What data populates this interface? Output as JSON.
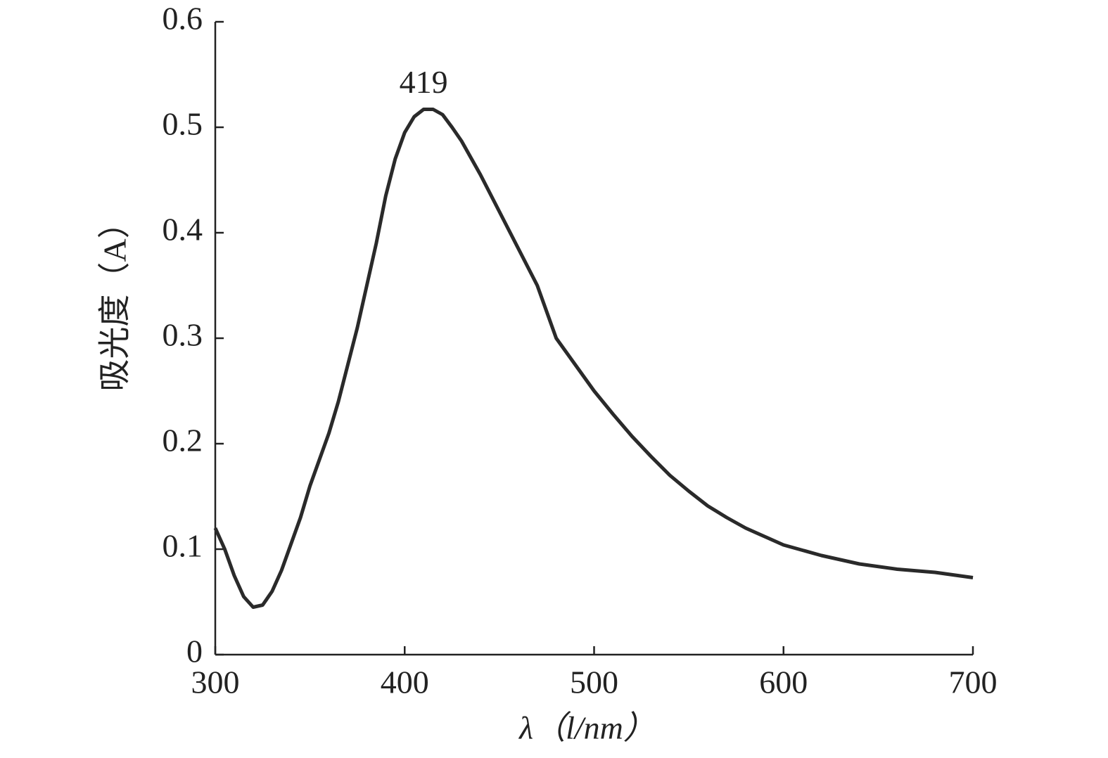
{
  "chart_data": {
    "type": "line",
    "x_label": "λ（l/nm）",
    "y_label": "吸光度（A）",
    "annotation": "419",
    "x": [
      300,
      305,
      310,
      315,
      320,
      325,
      330,
      335,
      340,
      345,
      350,
      355,
      360,
      365,
      370,
      375,
      380,
      385,
      390,
      395,
      400,
      405,
      410,
      415,
      420,
      425,
      430,
      440,
      450,
      460,
      470,
      480,
      490,
      500,
      510,
      520,
      530,
      540,
      550,
      560,
      570,
      580,
      590,
      600,
      620,
      640,
      660,
      680,
      700
    ],
    "series": [
      {
        "color": "#2a2a2a",
        "values": [
          0.12,
          0.1,
          0.075,
          0.055,
          0.045,
          0.047,
          0.06,
          0.08,
          0.105,
          0.13,
          0.16,
          0.185,
          0.21,
          0.24,
          0.275,
          0.31,
          0.35,
          0.39,
          0.435,
          0.47,
          0.495,
          0.51,
          0.517,
          0.517,
          0.512,
          0.5,
          0.487,
          0.455,
          0.42,
          0.385,
          0.35,
          0.3,
          0.275,
          0.25,
          0.228,
          0.207,
          0.188,
          0.17,
          0.155,
          0.141,
          0.13,
          0.12,
          0.112,
          0.104,
          0.094,
          0.086,
          0.081,
          0.078,
          0.073
        ]
      }
    ],
    "xlim": [
      300,
      700
    ],
    "xticks": [
      300,
      400,
      500,
      600,
      700
    ],
    "ylim": [
      0,
      0.6
    ],
    "yticks": [
      0,
      0.1,
      0.2,
      0.3,
      0.4,
      0.5,
      0.6
    ]
  }
}
